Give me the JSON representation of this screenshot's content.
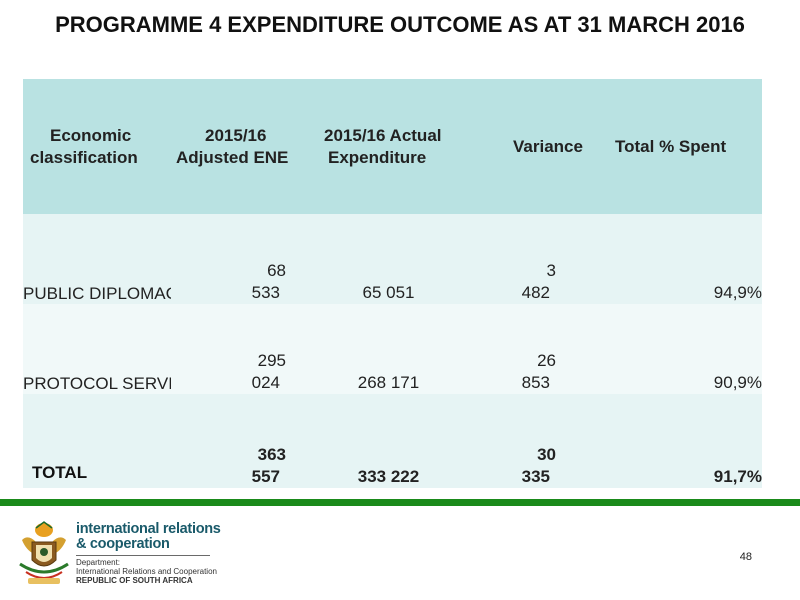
{
  "title": "PROGRAMME 4 EXPENDITURE OUTCOME AS AT 31 MARCH 2016",
  "table": {
    "headers": {
      "col1": [
        "Economic",
        "classification"
      ],
      "col2": [
        "2015/16",
        "Adjusted ENE"
      ],
      "col3": [
        "2015/16 Actual",
        "Expenditure"
      ],
      "col4": [
        "Variance"
      ],
      "col5": [
        "Total % Spent"
      ]
    },
    "rows": [
      {
        "label": "PUBLIC DIPLOMACY",
        "adjusted": [
          "68",
          "533"
        ],
        "actual": "65 051",
        "variance": [
          "3",
          "482"
        ],
        "spent": "94,9%"
      },
      {
        "label": "PROTOCOL SERVICES",
        "adjusted": [
          "295",
          "024"
        ],
        "actual": "268 171",
        "variance": [
          "26",
          "853"
        ],
        "spent": "90,9%"
      }
    ],
    "total": {
      "label": "TOTAL",
      "adjusted": [
        "363",
        "557"
      ],
      "actual": "333 222",
      "variance": [
        "30",
        "335"
      ],
      "spent": "91,7%"
    }
  },
  "footer": {
    "brand_line1": "international relations",
    "brand_line2": "& cooperation",
    "dept_line1": "Department:",
    "dept_line2": "International Relations and Cooperation",
    "dept_line3": "REPUBLIC OF SOUTH AFRICA",
    "page_number": "48",
    "accent_color": "#1a8a1a"
  }
}
